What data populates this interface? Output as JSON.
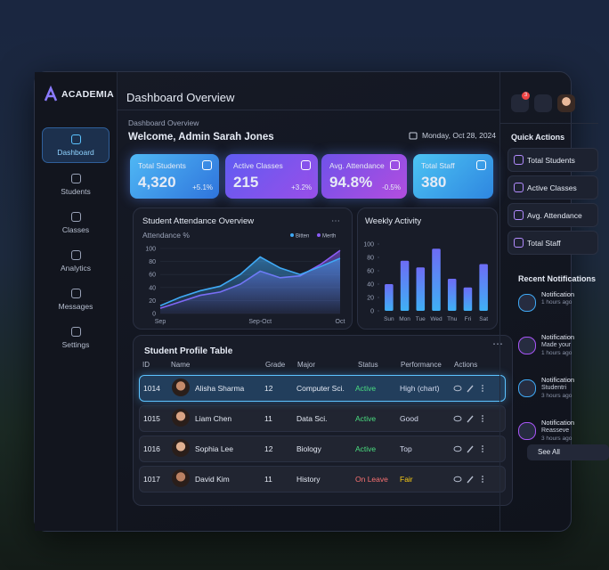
{
  "brand": "ACADEMIA",
  "nav": [
    "Dashboard",
    "Students",
    "Classes",
    "Analytics",
    "Messages",
    "Settings"
  ],
  "header": {
    "title": "Dashboard Overview",
    "breadcrumb": "Dashboard Overview",
    "welcome": "Welcome, Admin Sarah Jones",
    "date": "Monday, Oct 28, 2024",
    "badge": "3"
  },
  "stats": [
    {
      "label": "Total Students",
      "value": "4,320",
      "change": "+5.1%"
    },
    {
      "label": "Active Classes",
      "value": "215",
      "change": "+3.2%"
    },
    {
      "label": "Avg. Attendance",
      "value": "94.8%",
      "change": "-0.5%"
    },
    {
      "label": "Total Staff",
      "value": "380"
    }
  ],
  "attendance": {
    "type": "area",
    "title": "Student Attendance Overview",
    "y_label": "Attendance %",
    "categories": [
      "Sep",
      null,
      null,
      null,
      null,
      "Sep-Oct",
      null,
      null,
      null,
      "Oct"
    ],
    "series": [
      {
        "name": "Bitten",
        "color": "#3fa9f5",
        "values": [
          12,
          25,
          35,
          42,
          60,
          87,
          70,
          60,
          72,
          85
        ]
      },
      {
        "name": "Merth",
        "color": "#8b5cf6",
        "values": [
          8,
          18,
          28,
          33,
          45,
          65,
          55,
          58,
          75,
          97
        ]
      }
    ],
    "ylim": [
      0,
      100
    ],
    "yticks": [
      0,
      20,
      40,
      60,
      80,
      100
    ],
    "grid": true
  },
  "weekly": {
    "type": "bar",
    "title": "Weekly Activity",
    "categories": [
      "Sun",
      "Mon",
      "Tue",
      "Wed",
      "Thu",
      "Fri",
      "Sat"
    ],
    "values": [
      40,
      75,
      65,
      93,
      48,
      35,
      70
    ],
    "color": "#6d6cf5",
    "ylim": [
      0,
      100
    ],
    "yticks": [
      0,
      20,
      40,
      60,
      80,
      100
    ]
  },
  "table": {
    "title": "Student Profile Table",
    "columns": [
      "ID",
      "Name",
      "Grade",
      "Major",
      "Status",
      "Performance",
      "Actions"
    ],
    "rows": [
      {
        "id": "1014",
        "name": "Alisha Sharma",
        "grade": "12",
        "major": "Computer Sci.",
        "status": "Active",
        "performance": "High (chart)",
        "status_color": "#4ade80",
        "performance_color": "#d6dcf0"
      },
      {
        "id": "1015",
        "name": "Liam Chen",
        "grade": "11",
        "major": "Data Sci.",
        "status": "Active",
        "performance": "Good",
        "status_color": "#4ade80",
        "performance_color": "#d6dcf0"
      },
      {
        "id": "1016",
        "name": "Sophia Lee",
        "grade": "12",
        "major": "Biology",
        "status": "Active",
        "performance": "Top",
        "status_color": "#4ade80",
        "performance_color": "#d6dcf0"
      },
      {
        "id": "1017",
        "name": "David Kim",
        "grade": "11",
        "major": "History",
        "status": "On Leave",
        "performance": "Fair",
        "status_color": "#f87171",
        "performance_color": "#facc15"
      }
    ]
  },
  "quick_actions": {
    "title": "Quick Actions",
    "items": [
      "Total Students",
      "Active Classes",
      "Avg. Attendance",
      "Total Staff"
    ]
  },
  "notifications": {
    "title": "Recent Notifications",
    "items": [
      {
        "title": "Notification",
        "time": "1 hours ago"
      },
      {
        "title": "Notification",
        "text": "Made your",
        "time": "1 hours ago"
      },
      {
        "title": "Notification",
        "text": "Studentri",
        "time": "3 hours ago"
      },
      {
        "title": "Notification",
        "text": "Reasseve",
        "time": "3 hours ago"
      }
    ],
    "button": "See All"
  }
}
